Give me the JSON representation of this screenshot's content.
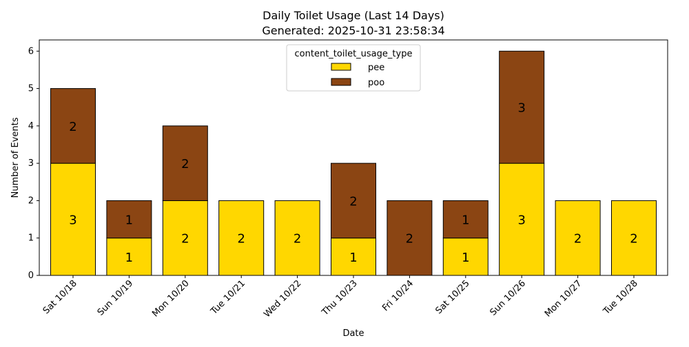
{
  "chart_data": {
    "type": "bar",
    "stacked": true,
    "title": "Daily Toilet Usage (Last 14 Days)",
    "subtitle": "Generated: 2025-10-31 23:58:34",
    "xlabel": "Date",
    "ylabel": "Number of Events",
    "ylim": [
      0,
      6.3
    ],
    "yticks": [
      0,
      1,
      2,
      3,
      4,
      5,
      6
    ],
    "grid": false,
    "legend": {
      "title": "content_toilet_usage_type",
      "placement": "top-center"
    },
    "categories": [
      "Sat 10/18",
      "Sun 10/19",
      "Mon 10/20",
      "Tue 10/21",
      "Wed 10/22",
      "Thu 10/23",
      "Fri 10/24",
      "Sat 10/25",
      "Sun 10/26",
      "Mon 10/27",
      "Tue 10/28"
    ],
    "series": [
      {
        "name": "pee",
        "color": "#FFD700",
        "values": [
          3,
          1,
          2,
          2,
          2,
          1,
          0,
          1,
          3,
          2,
          2
        ]
      },
      {
        "name": "poo",
        "color": "#8B4513",
        "values": [
          2,
          1,
          2,
          0,
          0,
          2,
          2,
          1,
          3,
          0,
          0
        ]
      }
    ]
  }
}
